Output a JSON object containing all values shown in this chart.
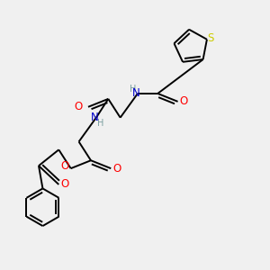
{
  "background_color": "#f0f0f0",
  "atom_colors": {
    "C": "#000000",
    "N": "#0000cd",
    "O": "#ff0000",
    "S": "#cccc00",
    "H": "#7a9ea0"
  },
  "bond_color": "#000000",
  "figsize": [
    3.0,
    3.0
  ],
  "dpi": 100,
  "lw": 1.4,
  "fs": 8.5
}
